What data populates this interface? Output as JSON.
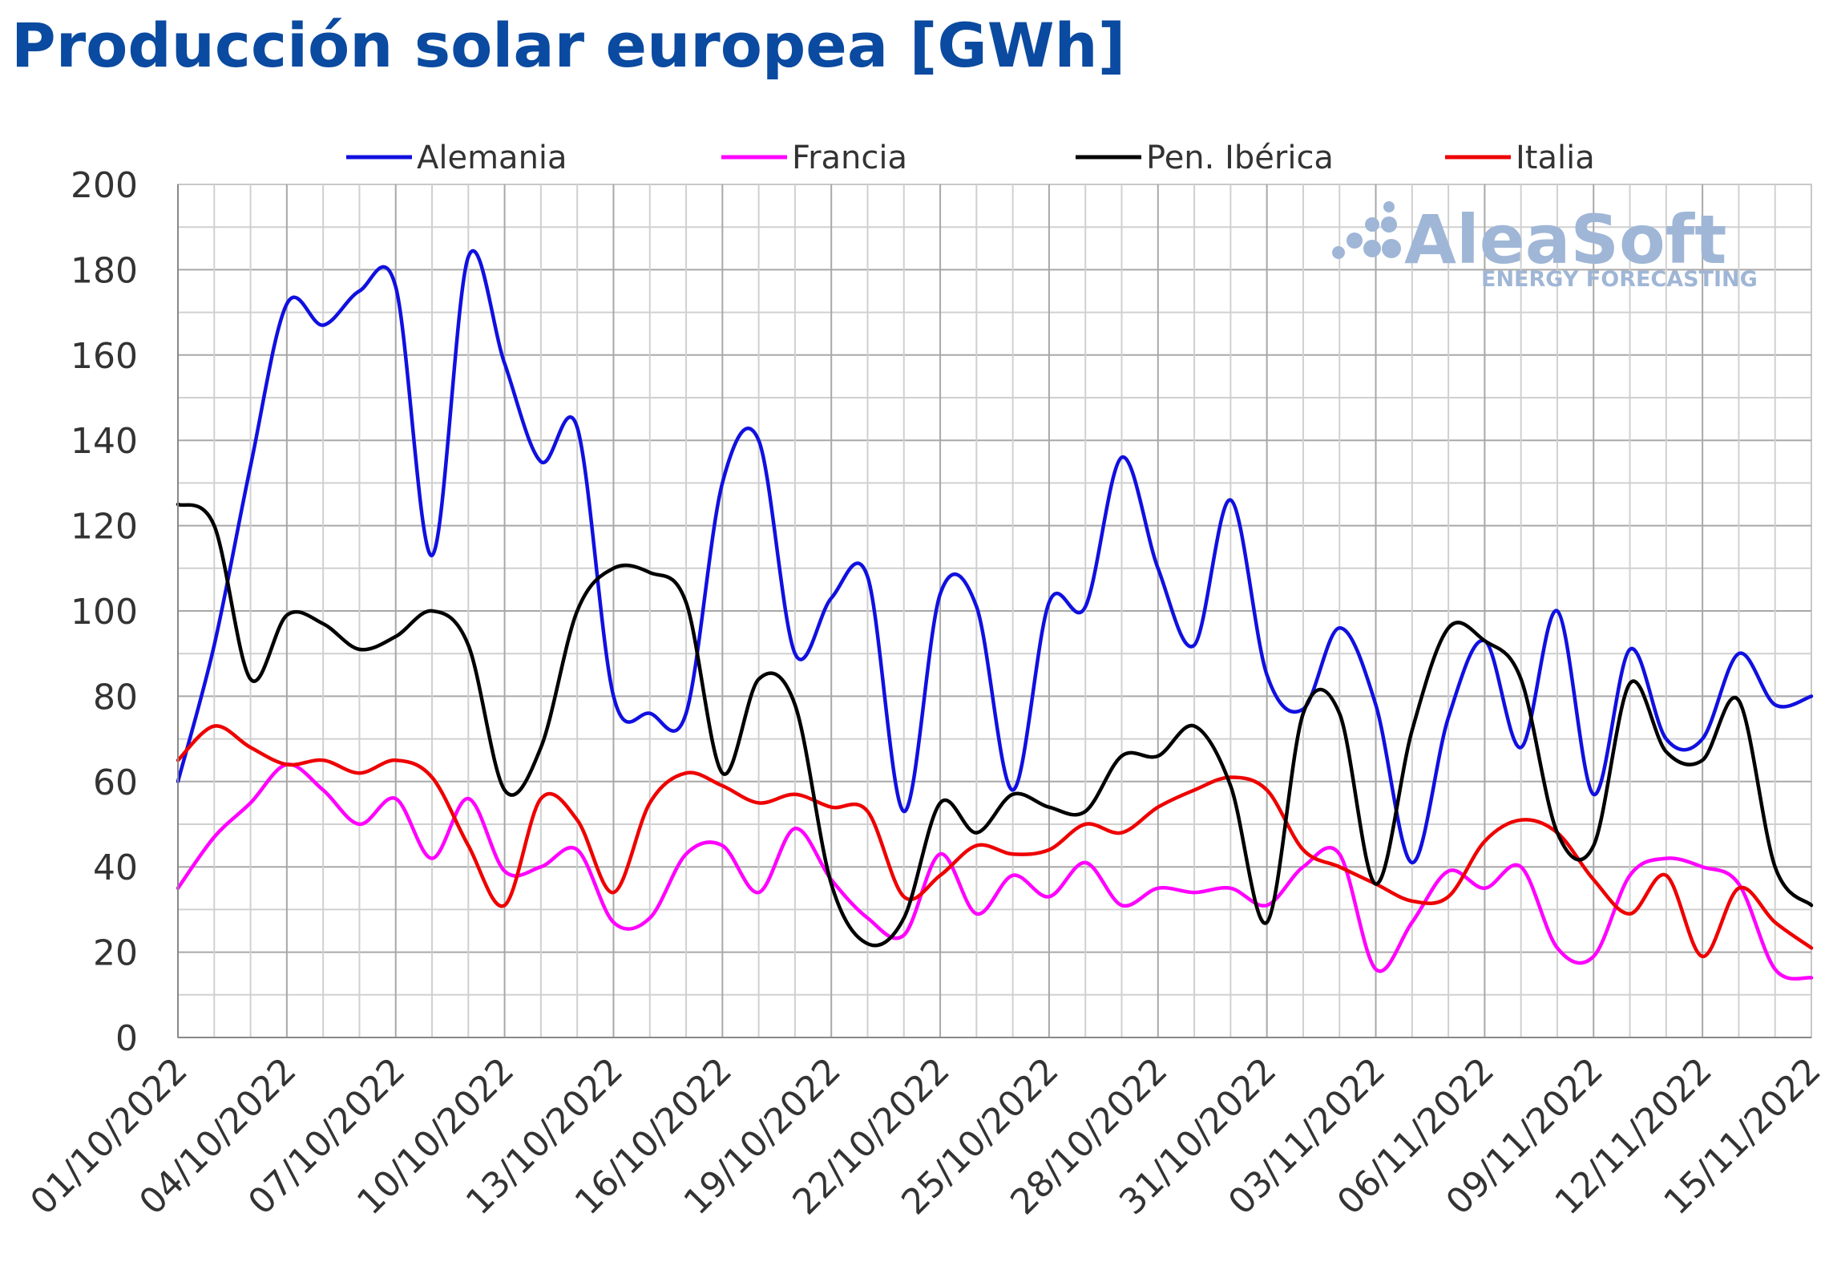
{
  "chart_data": {
    "type": "line",
    "title": "Producción solar europea [GWh]",
    "ylim": [
      0,
      200
    ],
    "yticks": [
      0,
      20,
      40,
      60,
      80,
      100,
      120,
      140,
      160,
      180,
      200
    ],
    "x": [
      "01/10/2022",
      "02/10/2022",
      "03/10/2022",
      "04/10/2022",
      "05/10/2022",
      "06/10/2022",
      "07/10/2022",
      "08/10/2022",
      "09/10/2022",
      "10/10/2022",
      "11/10/2022",
      "12/10/2022",
      "13/10/2022",
      "14/10/2022",
      "15/10/2022",
      "16/10/2022",
      "17/10/2022",
      "18/10/2022",
      "19/10/2022",
      "20/10/2022",
      "21/10/2022",
      "22/10/2022",
      "23/10/2022",
      "24/10/2022",
      "25/10/2022",
      "26/10/2022",
      "27/10/2022",
      "28/10/2022",
      "29/10/2022",
      "30/10/2022",
      "31/10/2022",
      "01/11/2022",
      "02/11/2022",
      "03/11/2022",
      "04/11/2022",
      "05/11/2022",
      "06/11/2022",
      "07/11/2022",
      "08/11/2022",
      "09/11/2022",
      "10/11/2022",
      "11/11/2022",
      "12/11/2022",
      "13/11/2022",
      "14/11/2022",
      "15/11/2022"
    ],
    "xtick_labels": [
      "01/10/2022",
      "04/10/2022",
      "07/10/2022",
      "10/10/2022",
      "13/10/2022",
      "16/10/2022",
      "19/10/2022",
      "22/10/2022",
      "25/10/2022",
      "28/10/2022",
      "31/10/2022",
      "03/11/2022",
      "06/11/2022",
      "09/11/2022",
      "12/11/2022",
      "15/11/2022"
    ],
    "grid": true,
    "legend_position": "top",
    "series": [
      {
        "name": "Alemania",
        "color": "#1010e0",
        "values": [
          60,
          92,
          134,
          172,
          167,
          175,
          176,
          113,
          183,
          158,
          135,
          143,
          80,
          76,
          76,
          130,
          140,
          90,
          103,
          108,
          53,
          104,
          101,
          58,
          102,
          101,
          136,
          110,
          92,
          126,
          85,
          77,
          96,
          78,
          41,
          75,
          93,
          68,
          100,
          57,
          91,
          70,
          70,
          90,
          78,
          80
        ]
      },
      {
        "name": "Francia",
        "color": "#ff00ff",
        "values": [
          35,
          47,
          55,
          64,
          58,
          50,
          56,
          42,
          56,
          39,
          40,
          44,
          27,
          28,
          43,
          45,
          34,
          49,
          37,
          28,
          24,
          43,
          29,
          38,
          33,
          41,
          31,
          35,
          34,
          35,
          31,
          40,
          43,
          16,
          27,
          39,
          35,
          40,
          21,
          19,
          38,
          42,
          40,
          36,
          16,
          14
        ]
      },
      {
        "name": "Pen. Ibérica",
        "color": "#000000",
        "values": [
          125,
          120,
          84,
          99,
          97,
          91,
          94,
          100,
          92,
          58,
          68,
          100,
          110,
          109,
          102,
          62,
          84,
          78,
          36,
          22,
          28,
          55,
          48,
          57,
          54,
          53,
          66,
          66,
          73,
          59,
          27,
          76,
          76,
          36,
          72,
          96,
          93,
          84,
          48,
          45,
          83,
          67,
          65,
          79,
          40,
          31
        ]
      },
      {
        "name": "Italia",
        "color": "#ee0000",
        "values": [
          65,
          73,
          68,
          64,
          65,
          62,
          65,
          61,
          45,
          31,
          56,
          51,
          34,
          55,
          62,
          59,
          55,
          57,
          54,
          53,
          33,
          38,
          45,
          43,
          44,
          50,
          48,
          54,
          58,
          61,
          58,
          44,
          40,
          36,
          32,
          33,
          46,
          51,
          48,
          37,
          29,
          38,
          19,
          35,
          27,
          21
        ]
      }
    ]
  },
  "watermark": {
    "brand": "AleaSoft",
    "tagline": "ENERGY FORECASTING"
  }
}
